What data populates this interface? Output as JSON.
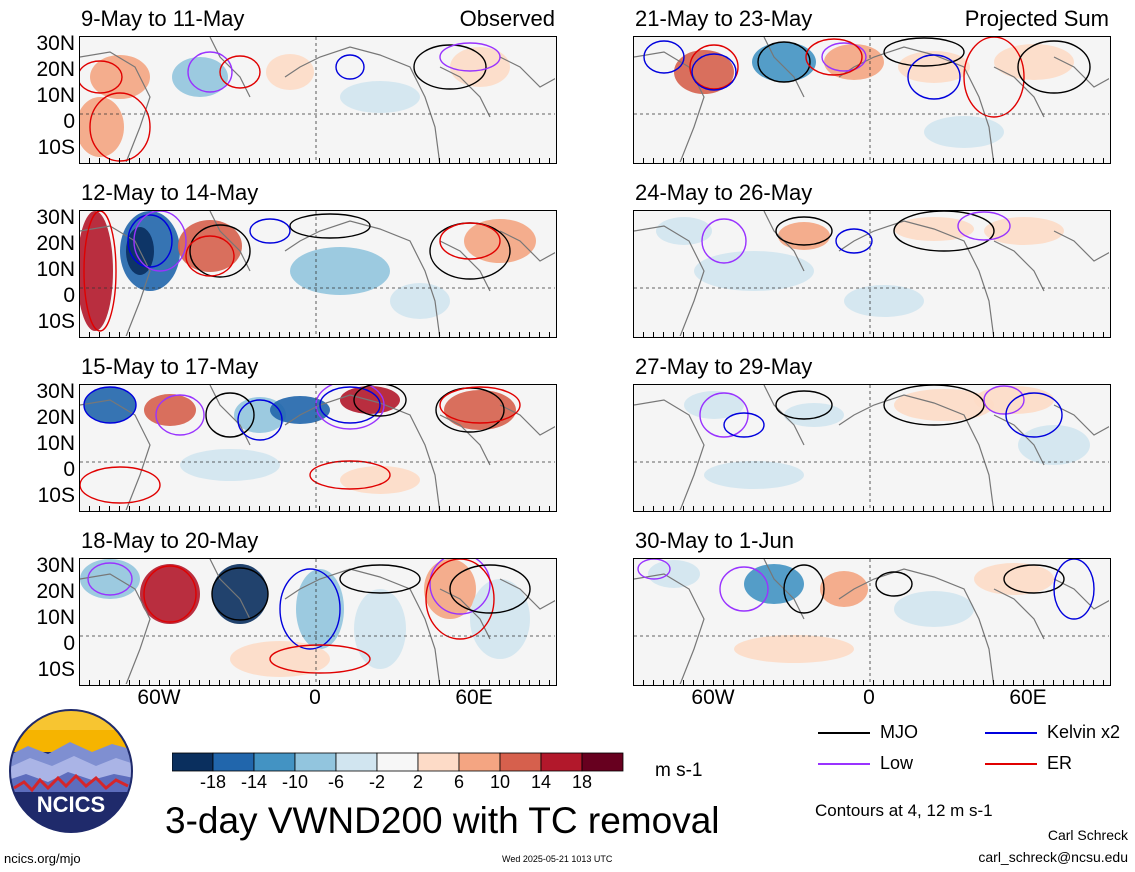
{
  "map": {
    "panels_left_tag": "Observed",
    "panels_right_tag": "Projected Sum",
    "lat_labels": [
      "30N",
      "20N",
      "10N",
      "0",
      "10S"
    ],
    "lon_labels": [
      "60W",
      "0",
      "60E"
    ],
    "panels": [
      {
        "title": "9-May to 11-May",
        "col": 0,
        "row": 0
      },
      {
        "title": "12-May to 14-May",
        "col": 0,
        "row": 1
      },
      {
        "title": "15-May to 17-May",
        "col": 0,
        "row": 2
      },
      {
        "title": "18-May to 20-May",
        "col": 0,
        "row": 3
      },
      {
        "title": "21-May to 23-May",
        "col": 1,
        "row": 0
      },
      {
        "title": "24-May to 26-May",
        "col": 1,
        "row": 1
      },
      {
        "title": "27-May to 29-May",
        "col": 1,
        "row": 2
      },
      {
        "title": "30-May to 1-Jun",
        "col": 1,
        "row": 3
      }
    ]
  },
  "colorbar": {
    "labels": [
      "-18",
      "-14",
      "-10",
      "-6",
      "-2",
      "2",
      "6",
      "10",
      "14",
      "18"
    ],
    "colors": [
      "#0a2f5e",
      "#2166ac",
      "#4393c3",
      "#92c5de",
      "#d1e5f0",
      "#f7f7f7",
      "#fddbc7",
      "#f4a582",
      "#d6604d",
      "#b2182b",
      "#67001f"
    ],
    "units": "m s-1"
  },
  "legend": {
    "items": [
      {
        "label": "MJO",
        "color": "#000000"
      },
      {
        "label": "Kelvin x2",
        "color": "#0000dd"
      },
      {
        "label": "Low",
        "color": "#9933ff"
      },
      {
        "label": "ER",
        "color": "#e00000"
      }
    ],
    "contour_note": "Contours at 4, 12 m s-1"
  },
  "main_title": "3-day VWND200 with TC removal",
  "logo_text": "NCICS",
  "footer": {
    "site": "ncics.org/mjo",
    "date": "Wed 2025-05-21 1013 UTC",
    "author": "Carl Schreck",
    "email": "carl_schreck@ncsu.edu"
  }
}
